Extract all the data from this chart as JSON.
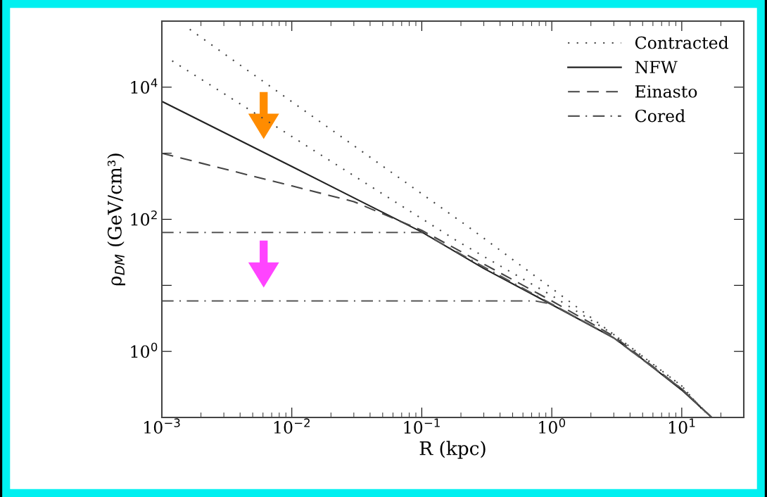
{
  "chart_data": {
    "type": "line",
    "xlabel": "R (kpc)",
    "ylabel": "ρ$_{DM}$ (GeV/cm³)",
    "log": "xy",
    "legend": "top right",
    "grid": false,
    "xlim": [
      0.001,
      30
    ],
    "ylim": [
      0.1,
      100000
    ],
    "xticks": [
      {
        "value": 0.001,
        "label": "10$^{−3}$"
      },
      {
        "value": 0.01,
        "label": "10$^{−2}$"
      },
      {
        "value": 0.1,
        "label": "10$^{−1}$"
      },
      {
        "value": 1,
        "label": "10$^{0}$"
      },
      {
        "value": 10,
        "label": "10$^{1}$"
      }
    ],
    "yticks": [
      {
        "value": 0.1,
        "label": null
      },
      {
        "value": 1,
        "label": "10$^{0}$"
      },
      {
        "value": 10,
        "label": null
      },
      {
        "value": 100,
        "label": "10$^{2}$"
      },
      {
        "value": 1000,
        "label": null
      },
      {
        "value": 10000,
        "label": "10$^{4}$"
      },
      {
        "value": 100000,
        "label": null
      }
    ],
    "series": [
      {
        "name": "Contracted",
        "color": "#444444",
        "line_style": "dotted",
        "x": [
          0.00164,
          0.23,
          1,
          3,
          10,
          15
        ],
        "values": [
          75000,
          76,
          9,
          1.8,
          0.3,
          0.12
        ]
      },
      {
        "color": "#444444",
        "line_style": "dotted",
        "x": [
          0.0012,
          0.19,
          1,
          3,
          10,
          15
        ],
        "values": [
          25000,
          46,
          7,
          1.8,
          0.3,
          0.12
        ]
      },
      {
        "name": "NFW",
        "color": "#222222",
        "line_style": "solid",
        "x": [
          0.001,
          0.01,
          0.1,
          0.3,
          1,
          3,
          5,
          10,
          17
        ],
        "values": [
          6100,
          630,
          64,
          18,
          5.1,
          1.6,
          0.76,
          0.26,
          0.1
        ]
      },
      {
        "name": "Einasto",
        "color": "#444444",
        "line_style": "dashed",
        "x": [
          0.001,
          0.01,
          0.03,
          0.1,
          1,
          3,
          10,
          17
        ],
        "values": [
          1000,
          320,
          185,
          68,
          5.8,
          1.7,
          0.27,
          0.1
        ]
      },
      {
        "name": "Cored",
        "color": "#555555",
        "line_style": "dashdot",
        "x": [
          0.001,
          0.1,
          0.3,
          1,
          3,
          10,
          17
        ],
        "values": [
          63,
          63,
          19,
          5.2,
          1.6,
          0.27,
          0.1
        ]
      },
      {
        "color": "#555555",
        "line_style": "dashdot",
        "x": [
          0.001,
          0.75,
          1,
          3,
          10,
          17
        ],
        "values": [
          5.8,
          5.8,
          5.2,
          1.6,
          0.27,
          0.1
        ]
      }
    ]
  }
}
